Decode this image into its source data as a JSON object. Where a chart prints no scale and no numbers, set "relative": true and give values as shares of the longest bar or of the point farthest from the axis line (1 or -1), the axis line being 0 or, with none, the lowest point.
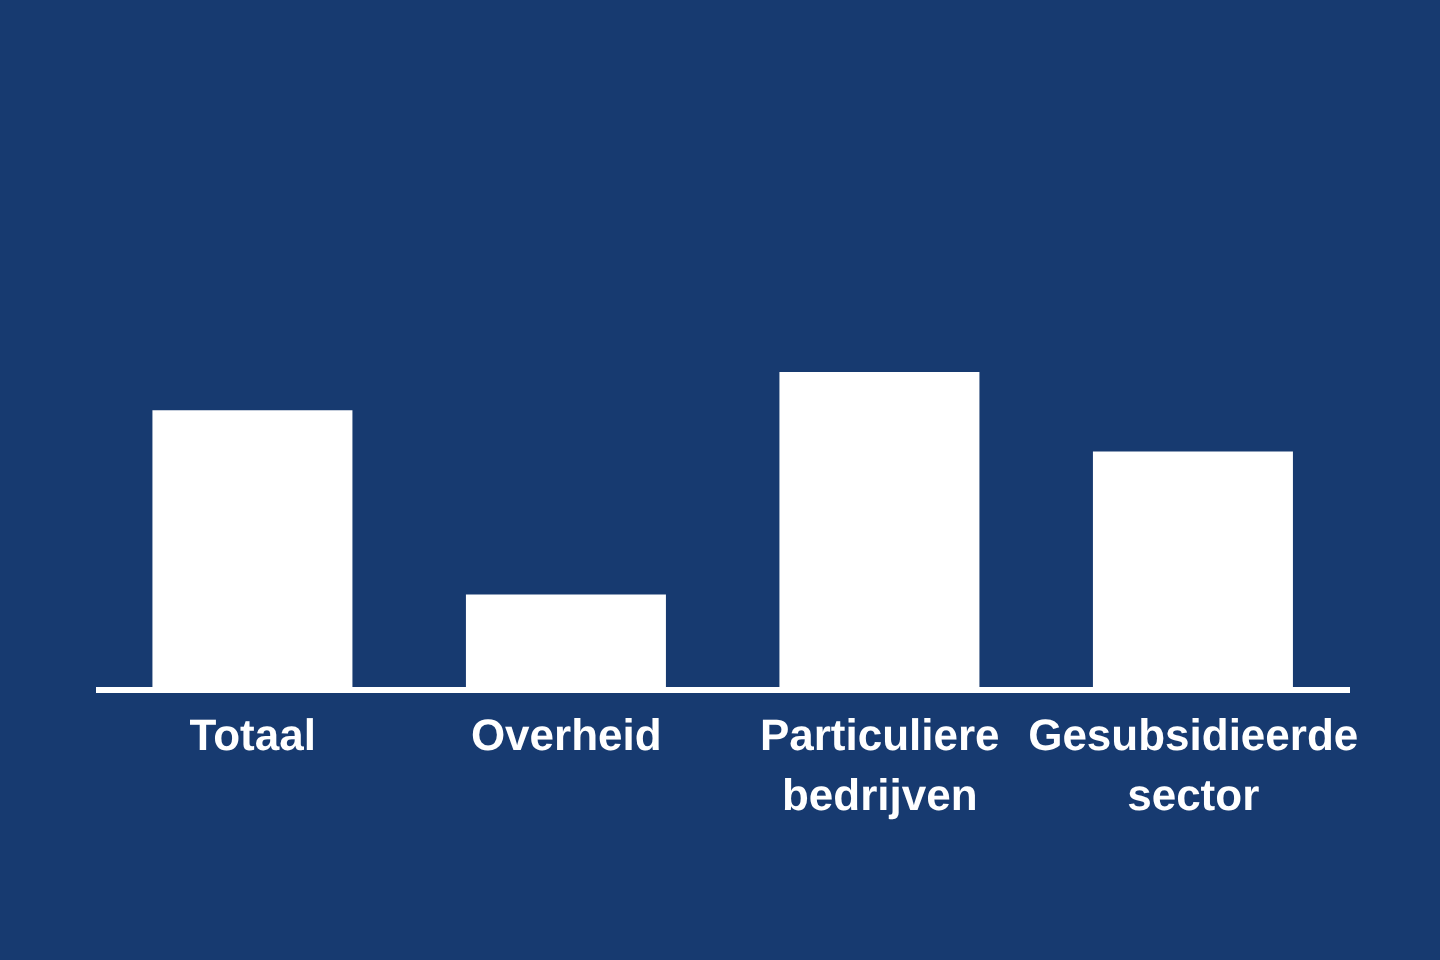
{
  "chart_data": {
    "type": "bar",
    "relative": true,
    "categories": [
      "Totaal",
      "Overheid",
      "Particuliere bedrijven",
      "Gesubsidieerde sector"
    ],
    "values": [
      0.88,
      0.3,
      1,
      0.75
    ],
    "color": "#ffffff"
  }
}
